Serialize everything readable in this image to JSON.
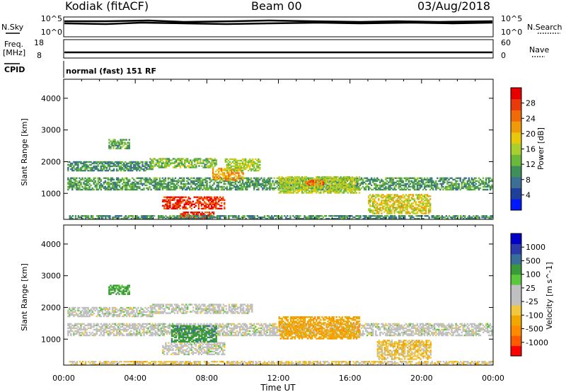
{
  "header": {
    "station": "Kodiak (fitACF)",
    "beam": "Beam 00",
    "date": "03/Aug/2018"
  },
  "status": {
    "nsky_label": "N.Sky",
    "nsearch_label": "N.Search",
    "nsky_ticks": [
      "10^5",
      "10^0"
    ],
    "nsearch_ticks": [
      "10^5",
      "10^0"
    ],
    "freq_label_line1": "Freq.",
    "freq_label_line2": "[MHz]",
    "freq_ticks": [
      "18",
      "8"
    ],
    "nave_label": "Nave",
    "nave_ticks": [
      "60",
      "0"
    ],
    "cpid_label": "CPID",
    "cpid_value": "normal (fast) 151 RF"
  },
  "colors": {
    "power_scale": [
      "#0018ff",
      "#1e3f9a",
      "#3d6e93",
      "#3f8f5a",
      "#6ab93a",
      "#a8cf2e",
      "#e8c80a",
      "#f09a0a",
      "#f06a0a",
      "#e83a0a",
      "#e80000"
    ],
    "velocity_scale": [
      "#ff0000",
      "#ff5a00",
      "#ff8a00",
      "#f0a800",
      "#f0c840",
      "#c0c0c0",
      "#c0c0c0",
      "#5ac83a",
      "#3a9a3a",
      "#3a6e9a",
      "#2a3aa8",
      "#0000c8"
    ]
  },
  "chart_data": [
    {
      "type": "heatmap",
      "title": "",
      "parameter": "Power",
      "xlabel": "Time UT",
      "ylabel": "Slant Range [km]",
      "x_tick_labels": [
        "00:00",
        "04:00",
        "08:00",
        "12:00",
        "16:00",
        "20:00",
        "00:00"
      ],
      "y_tick_labels": [
        "1000",
        "2000",
        "3000",
        "4000"
      ],
      "xlim_hours": [
        0,
        24
      ],
      "ylim_km": [
        180,
        4600
      ],
      "colorbar": {
        "label": "Power [dB]",
        "ticks": [
          "4",
          "8",
          "12",
          "16",
          "20",
          "24",
          "28"
        ],
        "range": [
          0,
          32
        ]
      },
      "echo_regions": [
        {
          "t0": 0.2,
          "t1": 23.9,
          "r0": 1100,
          "r1": 1500,
          "value": 11
        },
        {
          "t0": 0.2,
          "t1": 5.0,
          "r0": 1700,
          "r1": 2000,
          "value": 10
        },
        {
          "t0": 4.8,
          "t1": 8.5,
          "r0": 1800,
          "r1": 2100,
          "value": 14
        },
        {
          "t0": 5.5,
          "t1": 9.0,
          "r0": 500,
          "r1": 900,
          "value": 28
        },
        {
          "t0": 6.5,
          "t1": 8.5,
          "r0": 200,
          "r1": 400,
          "value": 29
        },
        {
          "t0": 8.3,
          "t1": 10.0,
          "r0": 1400,
          "r1": 1800,
          "value": 22
        },
        {
          "t0": 9.0,
          "t1": 11.0,
          "r0": 1700,
          "r1": 2100,
          "value": 16
        },
        {
          "t0": 12.0,
          "t1": 16.5,
          "r0": 1000,
          "r1": 1500,
          "value": 16
        },
        {
          "t0": 13.5,
          "t1": 14.5,
          "r0": 1250,
          "r1": 1400,
          "value": 24
        },
        {
          "t0": 17.0,
          "t1": 20.5,
          "r0": 350,
          "r1": 950,
          "value": 18
        },
        {
          "t0": 0.3,
          "t1": 23.9,
          "r0": 180,
          "r1": 300,
          "value": 10
        },
        {
          "t0": 2.5,
          "t1": 3.7,
          "r0": 2400,
          "r1": 2700,
          "value": 12
        }
      ]
    },
    {
      "type": "heatmap",
      "title": "",
      "parameter": "Velocity",
      "xlabel": "Time UT",
      "ylabel": "Slant Range [km]",
      "x_tick_labels": [
        "00:00",
        "04:00",
        "08:00",
        "12:00",
        "16:00",
        "20:00",
        "00:00"
      ],
      "y_tick_labels": [
        "1000",
        "2000",
        "3000",
        "4000"
      ],
      "xlim_hours": [
        0,
        24
      ],
      "ylim_km": [
        180,
        4600
      ],
      "colorbar": {
        "label": "Velocity [m s^-1]",
        "ticks": [
          "1000",
          "500",
          "100",
          "25",
          "-25",
          "-100",
          "-500",
          "-1000"
        ]
      },
      "echo_regions": [
        {
          "t0": 0.2,
          "t1": 23.9,
          "r0": 1100,
          "r1": 1500,
          "value": 0
        },
        {
          "t0": 0.2,
          "t1": 5.0,
          "r0": 1700,
          "r1": 2000,
          "value": 0
        },
        {
          "t0": 4.8,
          "t1": 10.5,
          "r0": 1800,
          "r1": 2100,
          "value": 0
        },
        {
          "t0": 5.5,
          "t1": 9.0,
          "r0": 500,
          "r1": 900,
          "value": 0
        },
        {
          "t0": 6.0,
          "t1": 8.5,
          "r0": 900,
          "r1": 1400,
          "value": 80
        },
        {
          "t0": 12.0,
          "t1": 16.5,
          "r0": 1000,
          "r1": 1700,
          "value": -80
        },
        {
          "t0": 17.5,
          "t1": 20.5,
          "r0": 350,
          "r1": 950,
          "value": -40
        },
        {
          "t0": 0.3,
          "t1": 23.9,
          "r0": 180,
          "r1": 300,
          "value": -30
        },
        {
          "t0": 2.5,
          "t1": 3.7,
          "r0": 2400,
          "r1": 2700,
          "value": 60
        }
      ]
    }
  ]
}
